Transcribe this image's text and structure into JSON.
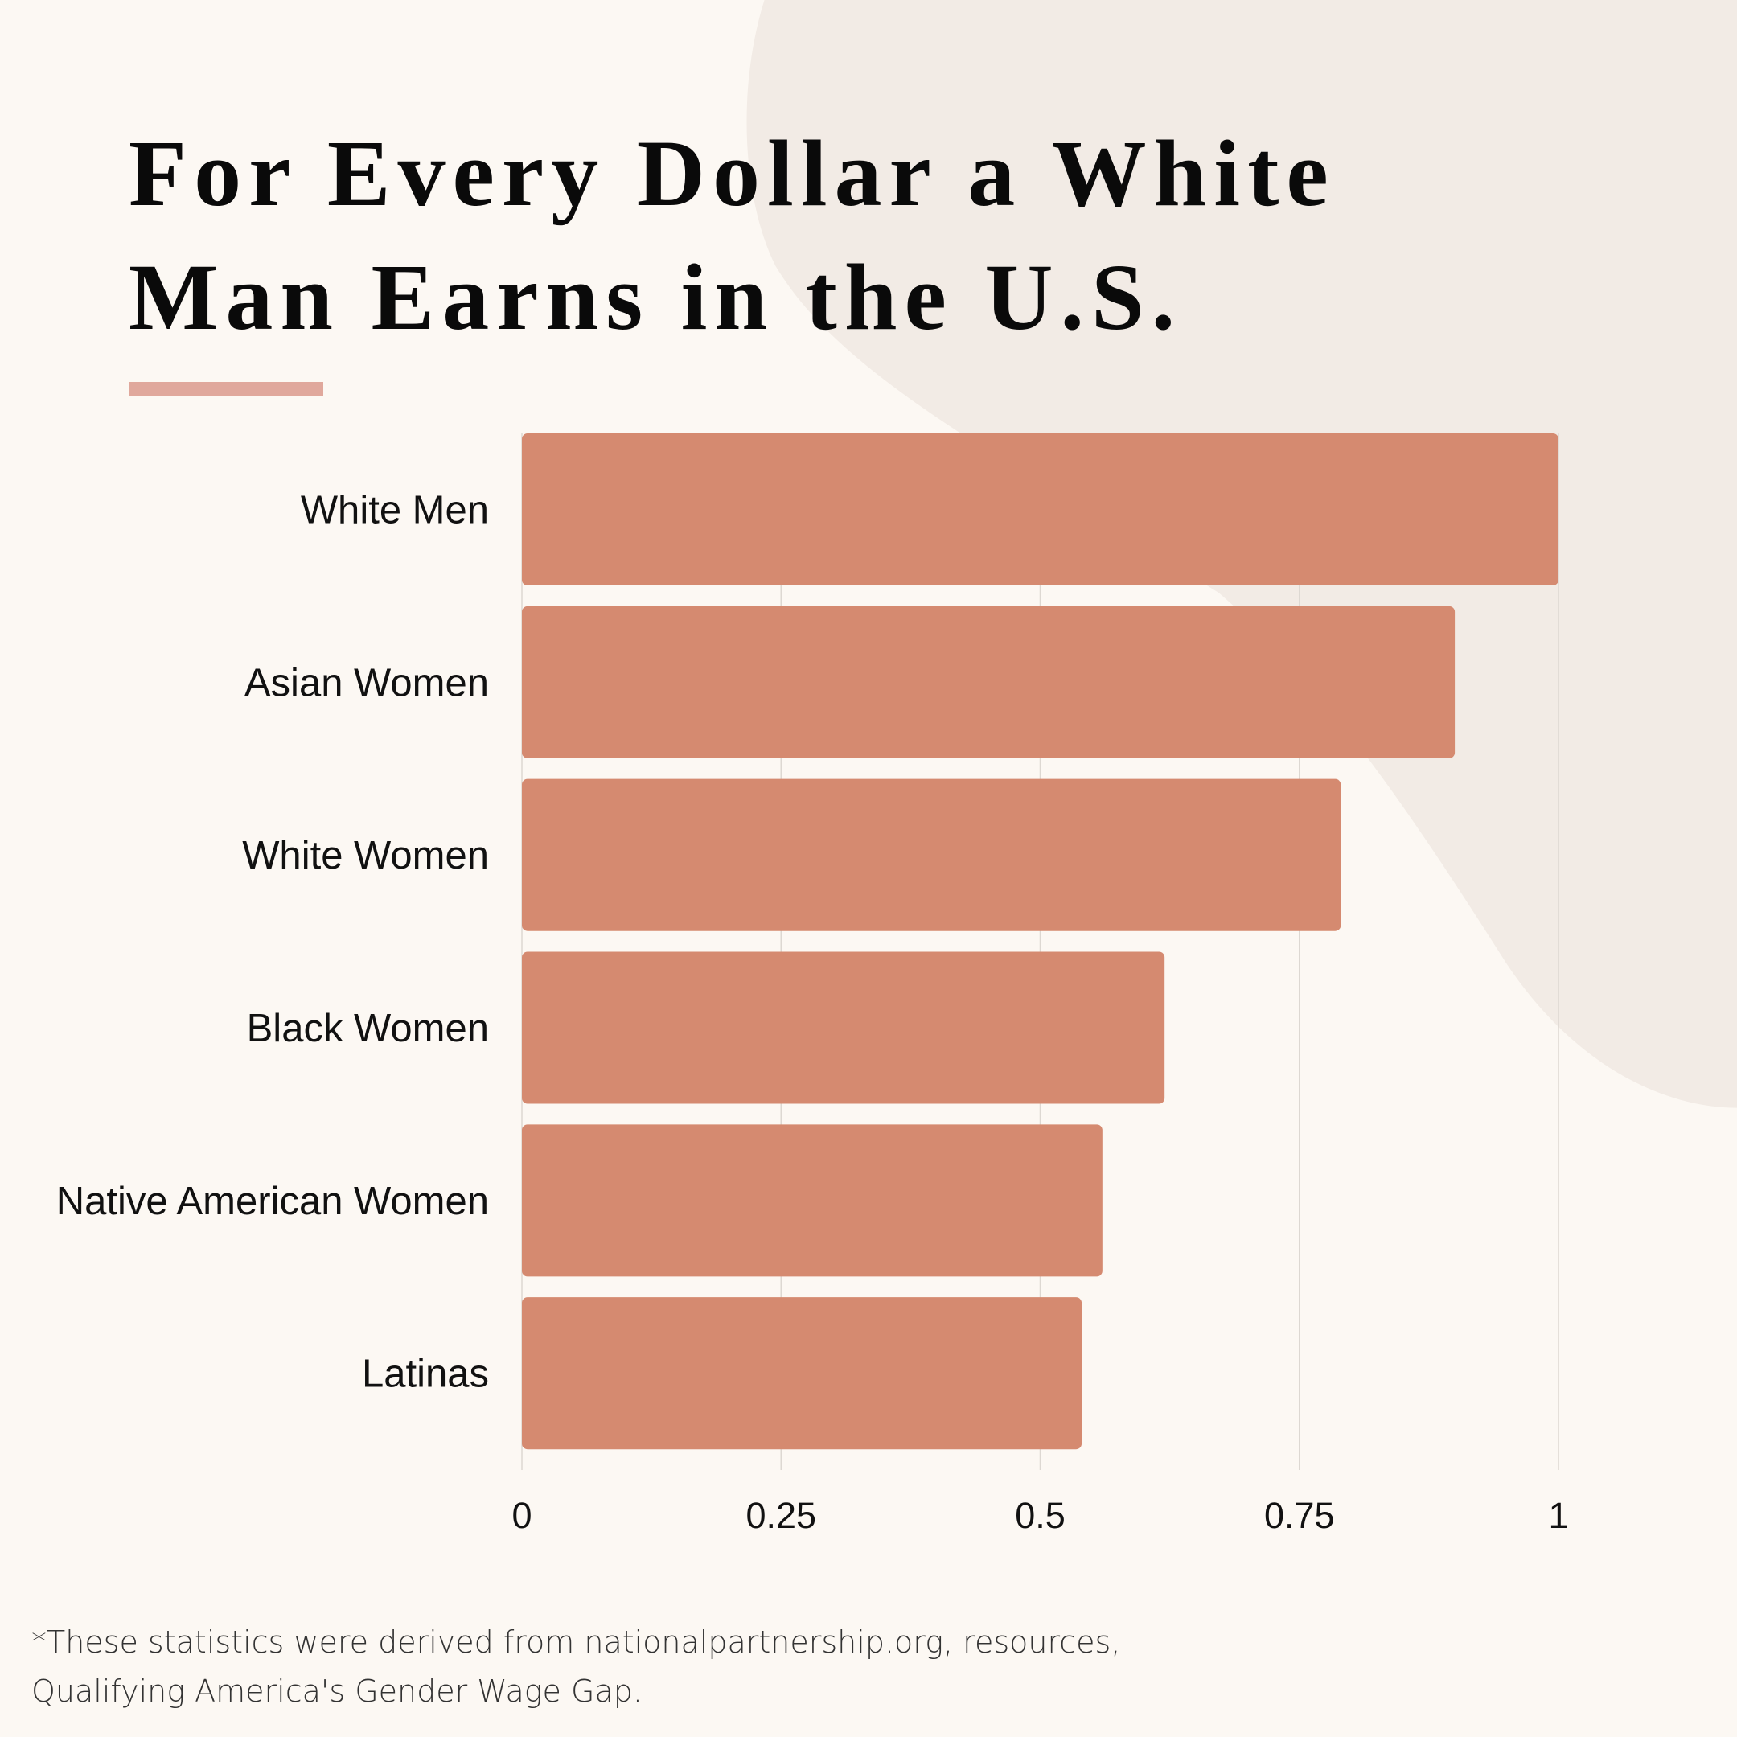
{
  "chart_data": {
    "type": "barh",
    "title": [
      "For Every Dollar a White",
      "Man Earns in the U.S."
    ],
    "categories": [
      "White Men",
      "Asian Women",
      "White Women",
      "Black Women",
      "Native American Women",
      "Latinas"
    ],
    "values": [
      1.0,
      0.9,
      0.79,
      0.62,
      0.56,
      0.54
    ],
    "color": "#d58a70",
    "xlim": [
      0,
      1
    ],
    "xticks": [
      0,
      0.25,
      0.5,
      0.75,
      1
    ],
    "grid": true,
    "footnote": [
      "*These statistics were derived from nationalpartnership.org, resources,",
      "Qualifying America's Gender Wage Gap."
    ]
  }
}
